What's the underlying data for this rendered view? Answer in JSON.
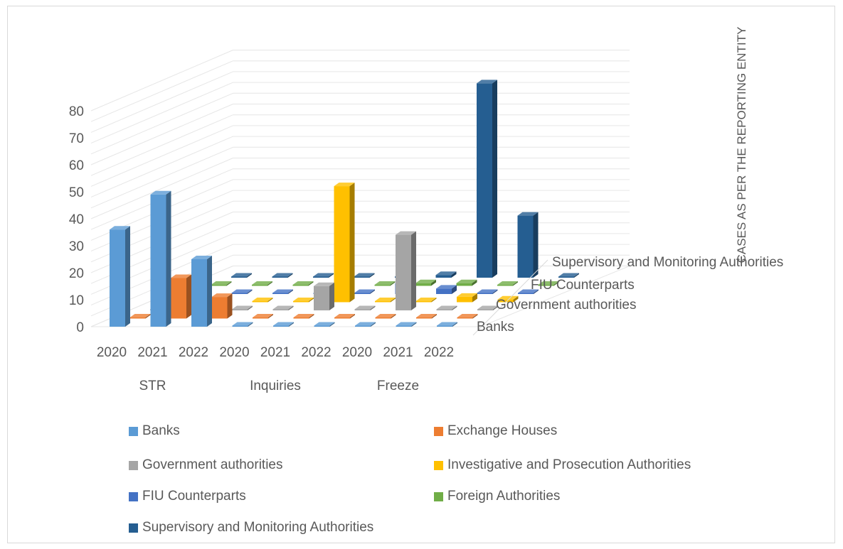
{
  "chart_data": {
    "type": "bar",
    "title": "",
    "ylim": [
      0,
      80
    ],
    "yticks": [
      "0",
      "10",
      "20",
      "30",
      "40",
      "50",
      "60",
      "70",
      "80"
    ],
    "categories": [
      "2020",
      "2021",
      "2022",
      "2020",
      "2021",
      "2022",
      "2020",
      "2021",
      "2022"
    ],
    "groups": [
      "STR",
      "Inquiries",
      "Freeze"
    ],
    "axis_title": "CASES AS PER THE REPORTING ENTITY",
    "depth_axis_labels": [
      "Banks",
      "Government authorities",
      "FIU Counterparts",
      "Supervisory and Monitoring Authorities"
    ],
    "legend_position": "bottom",
    "series": [
      {
        "name": "Banks",
        "color": "#5B9BD5",
        "values": [
          36,
          49,
          25,
          0,
          0,
          0,
          0,
          0,
          0
        ]
      },
      {
        "name": "Exchange Houses",
        "color": "#ED7D31",
        "values": [
          0,
          15,
          8,
          0,
          0,
          0,
          0,
          0,
          0
        ]
      },
      {
        "name": "Government authorities",
        "color": "#A5A5A5",
        "values": [
          0,
          0,
          0,
          0,
          9,
          0,
          28,
          0,
          0
        ]
      },
      {
        "name": "Investigative and Prosecution Authorities",
        "color": "#FFC000",
        "values": [
          0,
          0,
          0,
          0,
          43,
          0,
          0,
          2,
          1
        ]
      },
      {
        "name": "FIU Counterparts",
        "color": "#4472C4",
        "values": [
          0,
          0,
          0,
          0,
          0,
          4,
          2,
          0,
          0
        ]
      },
      {
        "name": "Foreign Authorities",
        "color": "#70AD47",
        "values": [
          0,
          0,
          0,
          0,
          0,
          1,
          1,
          0,
          0
        ]
      },
      {
        "name": "Supervisory and Monitoring Authorities",
        "color": "#255E91",
        "values": [
          0,
          0,
          0,
          0,
          0,
          1,
          72,
          23,
          0
        ]
      }
    ]
  }
}
